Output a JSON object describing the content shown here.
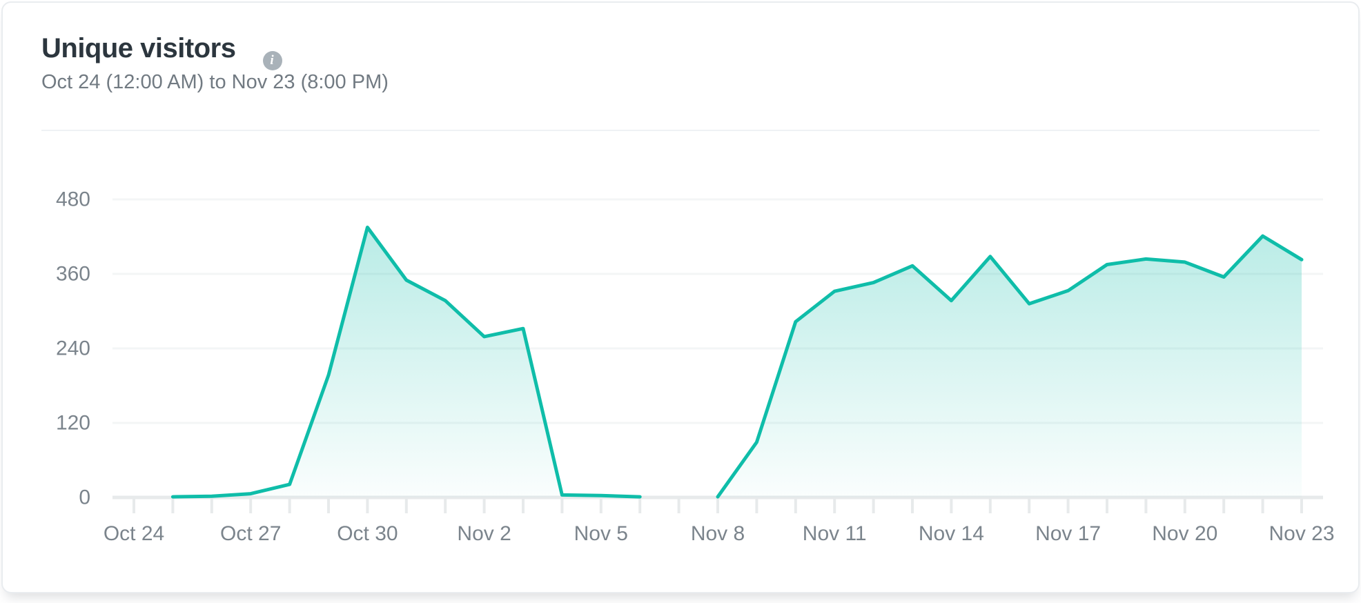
{
  "card": {
    "title": "Unique visitors",
    "info_glyph": "i",
    "date_range": "Oct 24 (12:00 AM) to Nov 23 (8:00 PM)"
  },
  "chart_data": {
    "type": "area",
    "title": "Unique visitors",
    "x": [
      "Oct 24",
      "Oct 25",
      "Oct 26",
      "Oct 27",
      "Oct 28",
      "Oct 29",
      "Oct 30",
      "Oct 31",
      "Nov 1",
      "Nov 2",
      "Nov 3",
      "Nov 4",
      "Nov 5",
      "Nov 6",
      "Nov 7",
      "Nov 8",
      "Nov 9",
      "Nov 10",
      "Nov 11",
      "Nov 12",
      "Nov 13",
      "Nov 14",
      "Nov 15",
      "Nov 16",
      "Nov 17",
      "Nov 18",
      "Nov 19",
      "Nov 20",
      "Nov 21",
      "Nov 22",
      "Nov 23"
    ],
    "series": [
      {
        "name": "Unique visitors",
        "values": [
          null,
          1,
          2,
          6,
          21,
          197,
          435,
          350,
          317,
          259,
          272,
          4,
          3,
          1,
          null,
          1,
          89,
          283,
          332,
          346,
          373,
          317,
          388,
          312,
          333,
          375,
          384,
          379,
          355,
          421,
          383
        ]
      }
    ],
    "x_tick_labels": [
      "Oct 24",
      "Oct 27",
      "Oct 30",
      "Nov 2",
      "Nov 5",
      "Nov 8",
      "Nov 11",
      "Nov 14",
      "Nov 17",
      "Nov 20",
      "Nov 23"
    ],
    "x_label_every": 3,
    "y_ticks": [
      0,
      120,
      240,
      360,
      480
    ],
    "ylim": [
      0,
      480
    ],
    "grid": true,
    "legend": "none",
    "colors": {
      "line": "#0fbda9",
      "fill_top": "rgba(15,189,169,0.32)",
      "fill_bottom": "rgba(15,189,169,0.02)",
      "grid": "#f3f5f6",
      "axis": "#e7eaeb",
      "axis_text": "#7b848c"
    }
  }
}
